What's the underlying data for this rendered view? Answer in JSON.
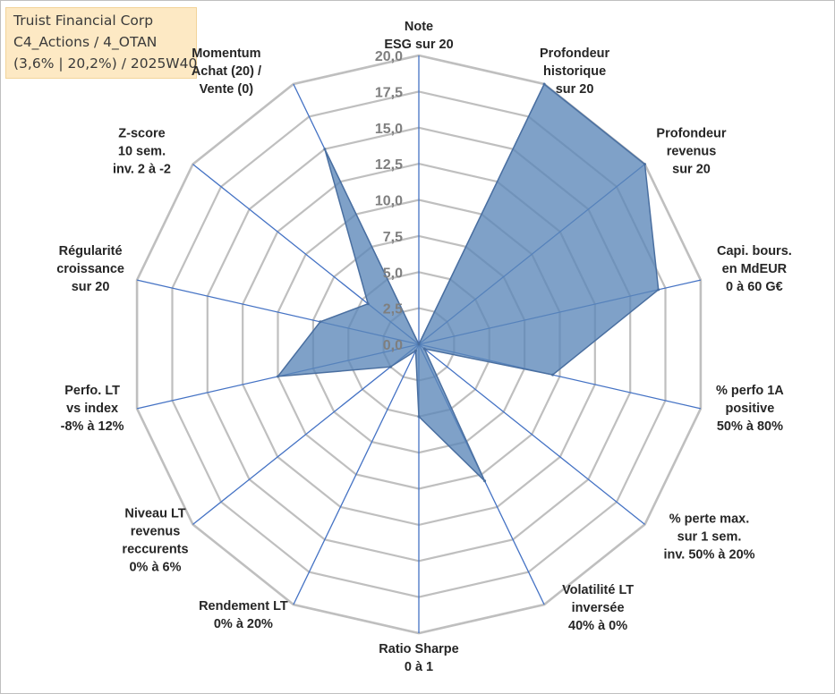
{
  "infobox": {
    "line1": "Truist Financial Corp",
    "line2": "C4_Actions / 4_OTAN",
    "line3": "(3,6% | 20,2%) / 2025W40"
  },
  "colors": {
    "fill": "#5b86b8",
    "stroke": "#4a6fa0",
    "grid": "#bfbfbf",
    "spoke": "#4472c4"
  },
  "chart_data": {
    "type": "radar",
    "title": "",
    "rmin": 0,
    "rmax": 20,
    "tick_values": [
      0,
      2.5,
      5,
      7.5,
      10,
      12.5,
      15,
      17.5,
      20
    ],
    "tick_labels": [
      "0,0",
      "2,5",
      "5,0",
      "7,5",
      "10,0",
      "12,5",
      "15,0",
      "17,5",
      "20,0"
    ],
    "axes": [
      {
        "label": [
          "Note",
          "ESG sur 20"
        ],
        "value": 0
      },
      {
        "label": [
          "Profondeur",
          "historique",
          "sur 20"
        ],
        "value": 20
      },
      {
        "label": [
          "Profondeur",
          "revenus",
          "sur 20"
        ],
        "value": 20
      },
      {
        "label": [
          "Capi. bours.",
          "en MdEUR",
          "0 à 60 G€"
        ],
        "value": 17
      },
      {
        "label": [
          "% perfo 1A",
          "positive",
          "50% à 80%"
        ],
        "value": 9.5
      },
      {
        "label": [
          "% perte max.",
          "sur 1 sem.",
          "inv. 50% à 20%"
        ],
        "value": 0.5
      },
      {
        "label": [
          "Volatilité LT",
          "inversée",
          "40% à 0%"
        ],
        "value": 10.5
      },
      {
        "label": [
          "Ratio Sharpe",
          "0 à 1"
        ],
        "value": 5
      },
      {
        "label": [
          "Rendement LT",
          "0% à 20%"
        ],
        "value": 0.5
      },
      {
        "label": [
          "Niveau LT",
          "revenus",
          "reccurents",
          "0% à 6%"
        ],
        "value": 2.5
      },
      {
        "label": [
          "Perfo. LT",
          "vs index",
          "-8% à 12%"
        ],
        "value": 10
      },
      {
        "label": [
          "Régularité",
          "croissance",
          "sur 20"
        ],
        "value": 7
      },
      {
        "label": [
          "Z-score",
          "10 sem.",
          "inv. 2 à -2"
        ],
        "value": 4.5
      },
      {
        "label": [
          "Momentum",
          "Achat (20) /",
          "Vente (0)"
        ],
        "value": 15
      }
    ]
  }
}
